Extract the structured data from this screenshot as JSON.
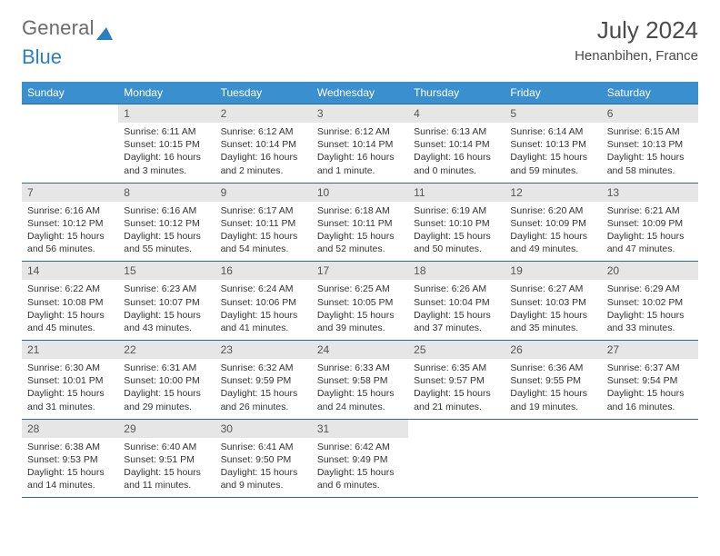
{
  "logo": {
    "text_gray": "General",
    "text_blue": "Blue"
  },
  "title": "July 2024",
  "location": "Henanbihen, France",
  "header_bg": "#3a8fcf",
  "border_color": "#2a6aa0",
  "daynum_bg": "#e6e6e6",
  "weekdays": [
    "Sunday",
    "Monday",
    "Tuesday",
    "Wednesday",
    "Thursday",
    "Friday",
    "Saturday"
  ],
  "weeks": [
    [
      null,
      {
        "d": "1",
        "sr": "Sunrise: 6:11 AM",
        "ss": "Sunset: 10:15 PM",
        "dl1": "Daylight: 16 hours",
        "dl2": "and 3 minutes."
      },
      {
        "d": "2",
        "sr": "Sunrise: 6:12 AM",
        "ss": "Sunset: 10:14 PM",
        "dl1": "Daylight: 16 hours",
        "dl2": "and 2 minutes."
      },
      {
        "d": "3",
        "sr": "Sunrise: 6:12 AM",
        "ss": "Sunset: 10:14 PM",
        "dl1": "Daylight: 16 hours",
        "dl2": "and 1 minute."
      },
      {
        "d": "4",
        "sr": "Sunrise: 6:13 AM",
        "ss": "Sunset: 10:14 PM",
        "dl1": "Daylight: 16 hours",
        "dl2": "and 0 minutes."
      },
      {
        "d": "5",
        "sr": "Sunrise: 6:14 AM",
        "ss": "Sunset: 10:13 PM",
        "dl1": "Daylight: 15 hours",
        "dl2": "and 59 minutes."
      },
      {
        "d": "6",
        "sr": "Sunrise: 6:15 AM",
        "ss": "Sunset: 10:13 PM",
        "dl1": "Daylight: 15 hours",
        "dl2": "and 58 minutes."
      }
    ],
    [
      {
        "d": "7",
        "sr": "Sunrise: 6:16 AM",
        "ss": "Sunset: 10:12 PM",
        "dl1": "Daylight: 15 hours",
        "dl2": "and 56 minutes."
      },
      {
        "d": "8",
        "sr": "Sunrise: 6:16 AM",
        "ss": "Sunset: 10:12 PM",
        "dl1": "Daylight: 15 hours",
        "dl2": "and 55 minutes."
      },
      {
        "d": "9",
        "sr": "Sunrise: 6:17 AM",
        "ss": "Sunset: 10:11 PM",
        "dl1": "Daylight: 15 hours",
        "dl2": "and 54 minutes."
      },
      {
        "d": "10",
        "sr": "Sunrise: 6:18 AM",
        "ss": "Sunset: 10:11 PM",
        "dl1": "Daylight: 15 hours",
        "dl2": "and 52 minutes."
      },
      {
        "d": "11",
        "sr": "Sunrise: 6:19 AM",
        "ss": "Sunset: 10:10 PM",
        "dl1": "Daylight: 15 hours",
        "dl2": "and 50 minutes."
      },
      {
        "d": "12",
        "sr": "Sunrise: 6:20 AM",
        "ss": "Sunset: 10:09 PM",
        "dl1": "Daylight: 15 hours",
        "dl2": "and 49 minutes."
      },
      {
        "d": "13",
        "sr": "Sunrise: 6:21 AM",
        "ss": "Sunset: 10:09 PM",
        "dl1": "Daylight: 15 hours",
        "dl2": "and 47 minutes."
      }
    ],
    [
      {
        "d": "14",
        "sr": "Sunrise: 6:22 AM",
        "ss": "Sunset: 10:08 PM",
        "dl1": "Daylight: 15 hours",
        "dl2": "and 45 minutes."
      },
      {
        "d": "15",
        "sr": "Sunrise: 6:23 AM",
        "ss": "Sunset: 10:07 PM",
        "dl1": "Daylight: 15 hours",
        "dl2": "and 43 minutes."
      },
      {
        "d": "16",
        "sr": "Sunrise: 6:24 AM",
        "ss": "Sunset: 10:06 PM",
        "dl1": "Daylight: 15 hours",
        "dl2": "and 41 minutes."
      },
      {
        "d": "17",
        "sr": "Sunrise: 6:25 AM",
        "ss": "Sunset: 10:05 PM",
        "dl1": "Daylight: 15 hours",
        "dl2": "and 39 minutes."
      },
      {
        "d": "18",
        "sr": "Sunrise: 6:26 AM",
        "ss": "Sunset: 10:04 PM",
        "dl1": "Daylight: 15 hours",
        "dl2": "and 37 minutes."
      },
      {
        "d": "19",
        "sr": "Sunrise: 6:27 AM",
        "ss": "Sunset: 10:03 PM",
        "dl1": "Daylight: 15 hours",
        "dl2": "and 35 minutes."
      },
      {
        "d": "20",
        "sr": "Sunrise: 6:29 AM",
        "ss": "Sunset: 10:02 PM",
        "dl1": "Daylight: 15 hours",
        "dl2": "and 33 minutes."
      }
    ],
    [
      {
        "d": "21",
        "sr": "Sunrise: 6:30 AM",
        "ss": "Sunset: 10:01 PM",
        "dl1": "Daylight: 15 hours",
        "dl2": "and 31 minutes."
      },
      {
        "d": "22",
        "sr": "Sunrise: 6:31 AM",
        "ss": "Sunset: 10:00 PM",
        "dl1": "Daylight: 15 hours",
        "dl2": "and 29 minutes."
      },
      {
        "d": "23",
        "sr": "Sunrise: 6:32 AM",
        "ss": "Sunset: 9:59 PM",
        "dl1": "Daylight: 15 hours",
        "dl2": "and 26 minutes."
      },
      {
        "d": "24",
        "sr": "Sunrise: 6:33 AM",
        "ss": "Sunset: 9:58 PM",
        "dl1": "Daylight: 15 hours",
        "dl2": "and 24 minutes."
      },
      {
        "d": "25",
        "sr": "Sunrise: 6:35 AM",
        "ss": "Sunset: 9:57 PM",
        "dl1": "Daylight: 15 hours",
        "dl2": "and 21 minutes."
      },
      {
        "d": "26",
        "sr": "Sunrise: 6:36 AM",
        "ss": "Sunset: 9:55 PM",
        "dl1": "Daylight: 15 hours",
        "dl2": "and 19 minutes."
      },
      {
        "d": "27",
        "sr": "Sunrise: 6:37 AM",
        "ss": "Sunset: 9:54 PM",
        "dl1": "Daylight: 15 hours",
        "dl2": "and 16 minutes."
      }
    ],
    [
      {
        "d": "28",
        "sr": "Sunrise: 6:38 AM",
        "ss": "Sunset: 9:53 PM",
        "dl1": "Daylight: 15 hours",
        "dl2": "and 14 minutes."
      },
      {
        "d": "29",
        "sr": "Sunrise: 6:40 AM",
        "ss": "Sunset: 9:51 PM",
        "dl1": "Daylight: 15 hours",
        "dl2": "and 11 minutes."
      },
      {
        "d": "30",
        "sr": "Sunrise: 6:41 AM",
        "ss": "Sunset: 9:50 PM",
        "dl1": "Daylight: 15 hours",
        "dl2": "and 9 minutes."
      },
      {
        "d": "31",
        "sr": "Sunrise: 6:42 AM",
        "ss": "Sunset: 9:49 PM",
        "dl1": "Daylight: 15 hours",
        "dl2": "and 6 minutes."
      },
      null,
      null,
      null
    ]
  ]
}
